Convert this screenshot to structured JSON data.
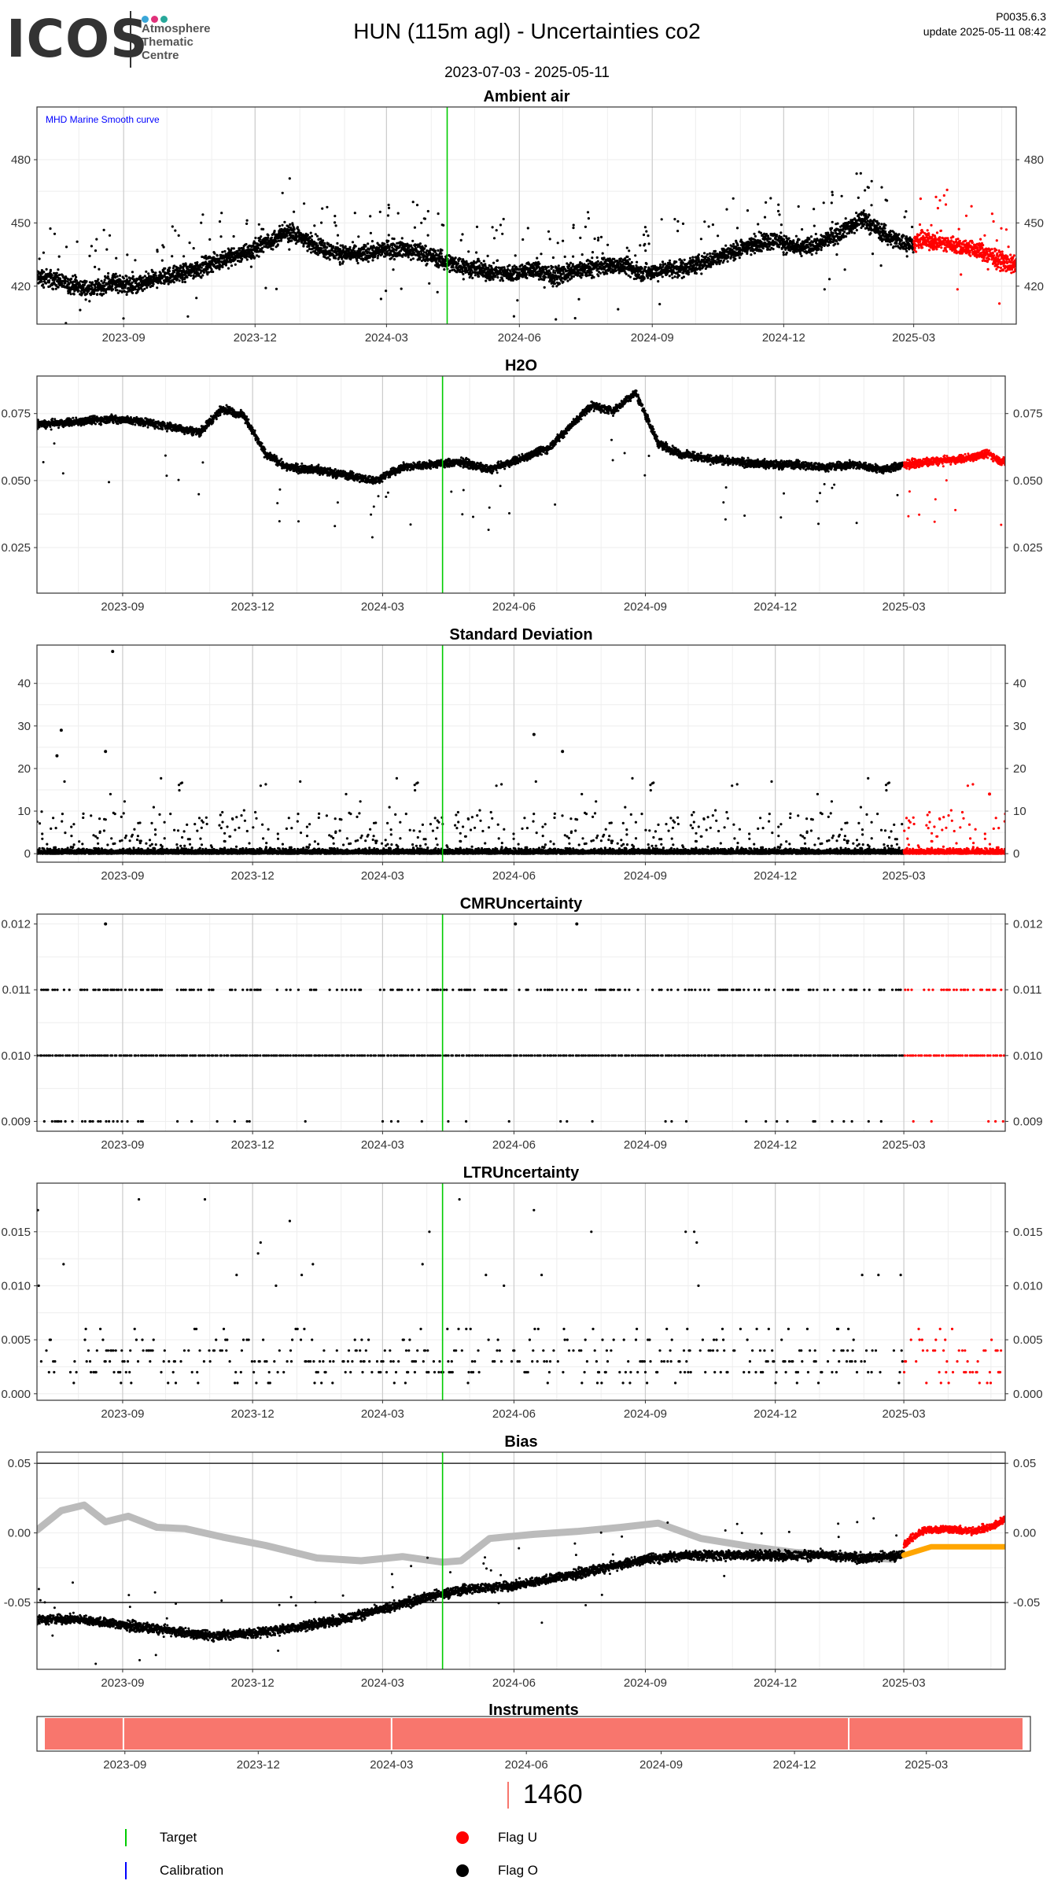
{
  "header": {
    "logo": {
      "text": "ICOS",
      "subtitle": [
        "Atmosphere",
        "Thematic",
        "Centre"
      ],
      "dot_colors": [
        "#3aa6d8",
        "#e0317a",
        "#27a89a"
      ]
    },
    "title": "HUN  (115m agl) - Uncertainties co2",
    "date_range": "2023-07-03 - 2025-05-11",
    "version": "P0035.6.3",
    "update": "update  2025-05-11 08:42"
  },
  "colors": {
    "flag_o": "#000000",
    "flag_u": "#ff0000",
    "target": "#00cc00",
    "calibration": "#0000ff",
    "smooth_curve": "#bbbbbb",
    "bias_reference": "#ffa500",
    "instrument_bar": "#f8766d",
    "grid_major": "#cccccc",
    "grid_minor": "#eeeeee"
  },
  "chart_data": [
    {
      "id": "ambient",
      "type": "scatter",
      "title": "Ambient air",
      "xlim": [
        "2023-07-03",
        "2025-05-11"
      ],
      "ylim": [
        402,
        505
      ],
      "yticks": [
        420,
        450,
        480
      ],
      "xticks": [
        "2023-09",
        "2023-12",
        "2024-03",
        "2024-06",
        "2024-09",
        "2024-12",
        "2025-03"
      ],
      "annotation": "MHD Marine Smooth curve",
      "target_date": "2024-04-12",
      "flag_u_from": "2025-03-01",
      "series": [
        {
          "x": [
            "2023-07-10",
            "2023-07-25",
            "2023-08-10",
            "2023-08-25",
            "2023-09-10",
            "2023-09-25",
            "2023-10-10",
            "2023-10-25",
            "2023-11-10",
            "2023-11-25",
            "2023-12-10",
            "2023-12-25",
            "2024-01-10",
            "2024-01-25",
            "2024-02-10",
            "2024-02-25",
            "2024-03-10",
            "2024-03-25",
            "2024-04-10",
            "2024-04-25",
            "2024-05-10",
            "2024-05-25",
            "2024-06-10",
            "2024-06-25",
            "2024-07-10",
            "2024-07-25",
            "2024-08-10",
            "2024-08-25",
            "2024-09-10",
            "2024-09-25",
            "2024-10-10",
            "2024-10-25",
            "2024-11-10",
            "2024-11-25",
            "2024-12-10",
            "2024-12-25",
            "2025-01-10",
            "2025-01-25",
            "2025-02-10",
            "2025-02-25",
            "2025-03-10",
            "2025-03-25",
            "2025-04-10",
            "2025-04-25",
            "2025-05-08"
          ],
          "y": [
            424,
            421,
            418,
            422,
            420,
            424,
            426,
            429,
            433,
            436,
            441,
            446,
            440,
            436,
            435,
            437,
            438,
            436,
            432,
            429,
            427,
            426,
            428,
            425,
            427,
            429,
            430,
            426,
            428,
            429,
            432,
            436,
            440,
            442,
            438,
            440,
            446,
            452,
            444,
            440,
            442,
            440,
            438,
            434,
            430
          ]
        }
      ]
    },
    {
      "id": "h2o",
      "type": "scatter",
      "title": "H2O",
      "xlim": [
        "2023-07-03",
        "2025-05-11"
      ],
      "ylim": [
        0.008,
        0.089
      ],
      "yticks": [
        0.025,
        0.05,
        0.075
      ],
      "xticks": [
        "2023-09",
        "2023-12",
        "2024-03",
        "2024-06",
        "2024-09",
        "2024-12",
        "2025-03"
      ],
      "target_date": "2024-04-12",
      "flag_u_from": "2025-03-01",
      "series": [
        {
          "x": [
            "2023-07-10",
            "2023-08-01",
            "2023-08-25",
            "2023-09-15",
            "2023-10-05",
            "2023-10-25",
            "2023-11-10",
            "2023-11-25",
            "2023-12-10",
            "2023-12-25",
            "2024-01-15",
            "2024-02-05",
            "2024-02-25",
            "2024-03-15",
            "2024-04-05",
            "2024-04-25",
            "2024-05-15",
            "2024-06-05",
            "2024-06-25",
            "2024-07-10",
            "2024-07-25",
            "2024-08-10",
            "2024-08-25",
            "2024-09-10",
            "2024-09-25",
            "2024-10-15",
            "2024-11-05",
            "2024-11-25",
            "2024-12-15",
            "2025-01-05",
            "2025-01-25",
            "2025-02-15",
            "2025-03-01",
            "2025-03-20",
            "2025-04-10",
            "2025-04-30",
            "2025-05-08"
          ],
          "y": [
            0.071,
            0.072,
            0.073,
            0.072,
            0.07,
            0.068,
            0.077,
            0.074,
            0.06,
            0.055,
            0.054,
            0.052,
            0.05,
            0.055,
            0.056,
            0.057,
            0.054,
            0.058,
            0.062,
            0.07,
            0.078,
            0.076,
            0.083,
            0.064,
            0.06,
            0.058,
            0.057,
            0.056,
            0.056,
            0.055,
            0.056,
            0.054,
            0.056,
            0.057,
            0.058,
            0.06,
            0.057
          ]
        }
      ]
    },
    {
      "id": "stdev",
      "type": "scatter",
      "title": "Standard Deviation",
      "xlim": [
        "2023-07-03",
        "2025-05-11"
      ],
      "ylim": [
        -2,
        49
      ],
      "yticks": [
        0,
        10,
        20,
        30,
        40
      ],
      "xticks": [
        "2023-09",
        "2023-12",
        "2024-03",
        "2024-06",
        "2024-09",
        "2024-12",
        "2025-03"
      ],
      "target_date": "2024-04-12",
      "flag_u_from": "2025-03-01",
      "outliers": [
        {
          "x": "2023-08-25",
          "y": 47.5
        },
        {
          "x": "2023-07-20",
          "y": 29
        },
        {
          "x": "2023-07-17",
          "y": 23
        },
        {
          "x": "2024-06-15",
          "y": 28
        },
        {
          "x": "2024-07-05",
          "y": 24
        },
        {
          "x": "2023-08-20",
          "y": 24
        },
        {
          "x": "2025-04-30",
          "y": 14
        }
      ]
    },
    {
      "id": "cmr",
      "type": "scatter",
      "title": "CMRUncertainty",
      "xlim": [
        "2023-07-03",
        "2025-05-11"
      ],
      "ylim": [
        0.00885,
        0.01215
      ],
      "yticks": [
        0.009,
        0.01,
        0.011,
        0.012
      ],
      "xticks": [
        "2023-09",
        "2023-12",
        "2024-03",
        "2024-06",
        "2024-09",
        "2024-12",
        "2025-03"
      ],
      "target_date": "2024-04-12",
      "flag_u_from": "2025-03-01",
      "levels": [
        0.009,
        0.01,
        0.011,
        0.012
      ]
    },
    {
      "id": "ltr",
      "type": "scatter",
      "title": "LTRUncertainty",
      "xlim": [
        "2023-07-03",
        "2025-05-11"
      ],
      "ylim": [
        -0.0006,
        0.0195
      ],
      "yticks": [
        0.0,
        0.005,
        0.01,
        0.015
      ],
      "xticks": [
        "2023-09",
        "2023-12",
        "2024-03",
        "2024-06",
        "2024-09",
        "2024-12",
        "2025-03"
      ],
      "target_date": "2024-04-12",
      "flag_u_from": "2025-03-01",
      "levels": [
        0.001,
        0.002,
        0.003,
        0.004,
        0.005,
        0.006,
        0.007,
        0.008,
        0.009,
        0.01,
        0.011,
        0.012,
        0.013,
        0.014,
        0.015,
        0.016,
        0.017,
        0.018,
        0.019
      ]
    },
    {
      "id": "bias",
      "type": "scatter",
      "title": "Bias",
      "xlim": [
        "2023-07-03",
        "2025-05-11"
      ],
      "ylim": [
        -0.098,
        0.058
      ],
      "yticks": [
        -0.05,
        0.0,
        0.05
      ],
      "hlines": [
        -0.05,
        0.05
      ],
      "xticks": [
        "2023-09",
        "2023-12",
        "2024-03",
        "2024-06",
        "2024-09",
        "2024-12",
        "2025-03"
      ],
      "target_date": "2024-04-12",
      "flag_u_from": "2025-03-01",
      "series": [
        {
          "name": "gray",
          "x": [
            "2023-07-03",
            "2023-07-20",
            "2023-08-05",
            "2023-08-20",
            "2023-09-05",
            "2023-09-25",
            "2023-10-15",
            "2023-11-10",
            "2023-12-10",
            "2024-01-15",
            "2024-02-15",
            "2024-03-15",
            "2024-04-12",
            "2024-04-25",
            "2024-05-15",
            "2024-06-15",
            "2024-07-15",
            "2024-08-15",
            "2024-09-10",
            "2024-10-10",
            "2024-11-15",
            "2024-12-15",
            "2025-01-15",
            "2025-02-20"
          ],
          "y": [
            0.002,
            0.016,
            0.02,
            0.008,
            0.012,
            0.004,
            0.003,
            -0.003,
            -0.009,
            -0.018,
            -0.02,
            -0.017,
            -0.021,
            -0.02,
            -0.004,
            -0.001,
            0.001,
            0.004,
            0.007,
            -0.004,
            -0.01,
            -0.014,
            -0.016,
            -0.019
          ]
        },
        {
          "name": "black",
          "x": [
            "2023-07-03",
            "2023-08-01",
            "2023-09-01",
            "2023-10-01",
            "2023-11-01",
            "2023-12-01",
            "2024-01-01",
            "2024-02-01",
            "2024-03-01",
            "2024-04-01",
            "2024-05-01",
            "2024-06-01",
            "2024-07-01",
            "2024-08-01",
            "2024-09-01",
            "2024-10-01",
            "2024-11-01",
            "2024-12-01",
            "2025-01-01",
            "2025-02-01",
            "2025-02-28"
          ],
          "y": [
            -0.062,
            -0.062,
            -0.066,
            -0.07,
            -0.074,
            -0.072,
            -0.068,
            -0.062,
            -0.055,
            -0.046,
            -0.04,
            -0.038,
            -0.032,
            -0.026,
            -0.019,
            -0.016,
            -0.016,
            -0.016,
            -0.016,
            -0.018,
            -0.016
          ]
        },
        {
          "name": "flag_u",
          "x": [
            "2025-03-01",
            "2025-03-15",
            "2025-04-01",
            "2025-04-15",
            "2025-05-01",
            "2025-05-11"
          ],
          "y": [
            -0.008,
            0.002,
            0.003,
            0.001,
            0.004,
            0.01
          ]
        },
        {
          "name": "orange",
          "x": [
            "2025-03-01",
            "2025-03-20",
            "2025-04-01",
            "2025-05-11"
          ],
          "y": [
            -0.016,
            -0.01,
            -0.01,
            -0.01
          ]
        }
      ]
    },
    {
      "id": "instruments",
      "type": "bar",
      "title": "Instruments",
      "xlim": [
        "2023-07-03",
        "2025-05-11"
      ],
      "xticks": [
        "2023-09",
        "2023-12",
        "2024-03",
        "2024-06",
        "2024-09",
        "2024-12",
        "2025-03"
      ],
      "breaks": [
        "2023-08-31",
        "2024-03-01",
        "2025-01-07"
      ],
      "count_label": "1460"
    }
  ],
  "legend": {
    "target_label": "Target",
    "calibration_label": "Calibration",
    "flag_u_label": "Flag U",
    "flag_o_label": "Flag O"
  }
}
